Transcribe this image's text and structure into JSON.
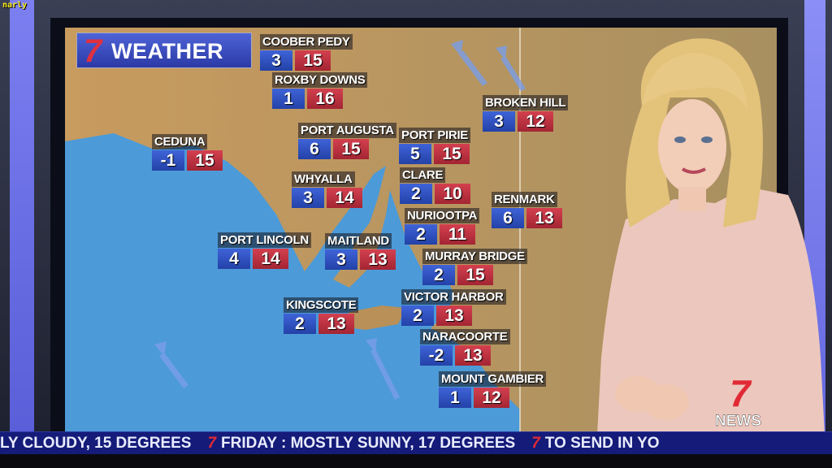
{
  "watermark": "narly",
  "header": {
    "brand_number": "7",
    "title": "WEATHER"
  },
  "cities": [
    {
      "name": "COOBER PEDY",
      "min": "3",
      "max": "15"
    },
    {
      "name": "ROXBY DOWNS",
      "min": "1",
      "max": "16"
    },
    {
      "name": "BROKEN HILL",
      "min": "3",
      "max": "12"
    },
    {
      "name": "CEDUNA",
      "min": "-1",
      "max": "15"
    },
    {
      "name": "PORT AUGUSTA",
      "min": "6",
      "max": "15"
    },
    {
      "name": "PORT PIRIE",
      "min": "5",
      "max": "15"
    },
    {
      "name": "WHYALLA",
      "min": "3",
      "max": "14"
    },
    {
      "name": "CLARE",
      "min": "2",
      "max": "10"
    },
    {
      "name": "RENMARK",
      "min": "6",
      "max": "13"
    },
    {
      "name": "NURIOOTPA",
      "min": "2",
      "max": "11"
    },
    {
      "name": "PORT LINCOLN",
      "min": "4",
      "max": "14"
    },
    {
      "name": "MAITLAND",
      "min": "3",
      "max": "13"
    },
    {
      "name": "MURRAY BRIDGE",
      "min": "2",
      "max": "15"
    },
    {
      "name": "VICTOR HARBOR",
      "min": "2",
      "max": "13"
    },
    {
      "name": "KINGSCOTE",
      "min": "2",
      "max": "13"
    },
    {
      "name": "NARACOORTE",
      "min": "-2",
      "max": "13"
    },
    {
      "name": "MOUNT GAMBIER",
      "min": "1",
      "max": "12"
    }
  ],
  "ticker": {
    "items": [
      "LY CLOUDY, 15 DEGREES",
      "FRIDAY : MOSTLY SUNNY, 17 DEGREES",
      "TO SEND IN YO"
    ],
    "separator": "7"
  },
  "channel_logo": {
    "number": "7",
    "text": "NEWS"
  },
  "colors": {
    "min_box": "#2f4fc0",
    "max_box": "#c0303f",
    "ticker_bg": "#151b78",
    "ocean": "#4a9ad8",
    "land": "#c39a62"
  }
}
